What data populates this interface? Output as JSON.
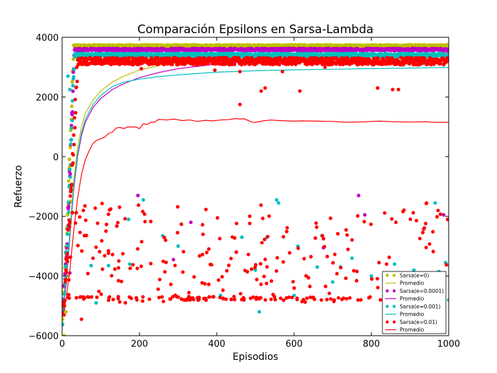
{
  "chart_data": {
    "type": "scatter",
    "title": "Comparación Epsilons en Sarsa-Lambda",
    "xlabel": "Episodios",
    "ylabel": "Refuerzo",
    "xlim": [
      0,
      1000
    ],
    "ylim": [
      -6000,
      4000
    ],
    "xticks": [
      0,
      200,
      400,
      600,
      800,
      1000
    ],
    "yticks": [
      -6000,
      -4000,
      -2000,
      0,
      2000,
      4000
    ],
    "xtick_labels": [
      "0",
      "200",
      "400",
      "600",
      "800",
      "1000"
    ],
    "ytick_labels": [
      "−6000",
      "−4000",
      "−2000",
      "0",
      "2000",
      "4000"
    ],
    "grid": false,
    "legend_position": "lower-right",
    "series": [
      {
        "name": "Sarsa(e=0)",
        "kind": "scatter",
        "color": "#bfbf00",
        "plateau": 3720,
        "plateau_noise": 30,
        "rise_end": 30,
        "outliers": [
          [
            5,
            -6000
          ],
          [
            10,
            -5200
          ],
          [
            15,
            -4000
          ],
          [
            22,
            -1500
          ]
        ]
      },
      {
        "name": "Promedio",
        "kind": "line",
        "color": "#bfbf00",
        "points": [
          [
            0,
            -5300
          ],
          [
            10,
            -4200
          ],
          [
            20,
            -2500
          ],
          [
            30,
            -800
          ],
          [
            40,
            300
          ],
          [
            50,
            1000
          ],
          [
            60,
            1450
          ],
          [
            80,
            1900
          ],
          [
            100,
            2200
          ],
          [
            130,
            2500
          ],
          [
            160,
            2700
          ],
          [
            200,
            2900
          ],
          [
            250,
            3050
          ],
          [
            300,
            3150
          ],
          [
            400,
            3300
          ],
          [
            500,
            3400
          ],
          [
            600,
            3470
          ],
          [
            700,
            3530
          ],
          [
            800,
            3580
          ],
          [
            900,
            3620
          ],
          [
            1000,
            3650
          ]
        ]
      },
      {
        "name": "Sarsa(e=0.0001)",
        "kind": "scatter",
        "color": "#bf00bf",
        "plateau": 3590,
        "plateau_noise": 40,
        "rise_end": 32,
        "outliers": [
          [
            20,
            -3900
          ],
          [
            196,
            -1300
          ],
          [
            333,
            -2200
          ],
          [
            288,
            -3450
          ],
          [
            676,
            -3050
          ],
          [
            767,
            -1300
          ],
          [
            783,
            -1950
          ],
          [
            987,
            -1950
          ]
        ]
      },
      {
        "name": "Promedio",
        "kind": "line",
        "color": "#bf00bf",
        "points": [
          [
            0,
            -5300
          ],
          [
            10,
            -4300
          ],
          [
            20,
            -2700
          ],
          [
            30,
            -1100
          ],
          [
            40,
            0
          ],
          [
            50,
            700
          ],
          [
            60,
            1150
          ],
          [
            80,
            1650
          ],
          [
            100,
            1950
          ],
          [
            130,
            2250
          ],
          [
            160,
            2450
          ],
          [
            200,
            2650
          ],
          [
            250,
            2820
          ],
          [
            300,
            2950
          ],
          [
            400,
            3100
          ],
          [
            500,
            3200
          ],
          [
            600,
            3300
          ],
          [
            700,
            3350
          ],
          [
            800,
            3400
          ],
          [
            900,
            3440
          ],
          [
            1000,
            3480
          ]
        ]
      },
      {
        "name": "Sarsa(e=0.001)",
        "kind": "scatter",
        "color": "#00bfbf",
        "plateau": 3400,
        "plateau_noise": 60,
        "rise_end": 32,
        "outliers": [
          [
            15,
            2700
          ],
          [
            20,
            2250
          ],
          [
            75,
            -3650
          ],
          [
            88,
            -4900
          ],
          [
            120,
            -3650
          ],
          [
            172,
            -2100
          ],
          [
            175,
            -3600
          ],
          [
            210,
            -1450
          ],
          [
            260,
            -2650
          ],
          [
            300,
            -3000
          ],
          [
            410,
            -4650
          ],
          [
            450,
            -3200
          ],
          [
            465,
            -2700
          ],
          [
            500,
            -3800
          ],
          [
            510,
            -5200
          ],
          [
            530,
            -2700
          ],
          [
            555,
            -1450
          ],
          [
            560,
            -1550
          ],
          [
            600,
            -4650
          ],
          [
            610,
            -3000
          ],
          [
            660,
            -3700
          ],
          [
            672,
            -2650
          ],
          [
            700,
            -4200
          ],
          [
            720,
            -3700
          ],
          [
            750,
            -3400
          ],
          [
            800,
            -4000
          ],
          [
            860,
            -3600
          ],
          [
            910,
            -3800
          ],
          [
            965,
            -1550
          ],
          [
            975,
            -3850
          ],
          [
            992,
            -3550
          ],
          [
            1000,
            -4800
          ]
        ]
      },
      {
        "name": "Promedio",
        "kind": "line",
        "color": "#00bfbf",
        "points": [
          [
            0,
            -5300
          ],
          [
            10,
            -4100
          ],
          [
            20,
            -2600
          ],
          [
            30,
            -1000
          ],
          [
            40,
            100
          ],
          [
            50,
            800
          ],
          [
            60,
            1250
          ],
          [
            80,
            1750
          ],
          [
            100,
            2050
          ],
          [
            130,
            2350
          ],
          [
            160,
            2500
          ],
          [
            200,
            2600
          ],
          [
            250,
            2680
          ],
          [
            300,
            2740
          ],
          [
            400,
            2830
          ],
          [
            500,
            2880
          ],
          [
            600,
            2910
          ],
          [
            700,
            2930
          ],
          [
            800,
            2950
          ],
          [
            900,
            2970
          ],
          [
            1000,
            2990
          ]
        ]
      },
      {
        "name": "Sarsa(e=0.01)",
        "kind": "scatter",
        "color": "#ff0000",
        "plateau": 3200,
        "plateau_noise": 120,
        "rise_end": 40,
        "outlier_count": 330,
        "outlier_seed": 7,
        "outlier_range": [
          -4950,
          -1550
        ],
        "outliers": [
          [
            5,
            -5300
          ],
          [
            50,
            -5450
          ],
          [
            460,
            1750
          ],
          [
            515,
            2200
          ],
          [
            525,
            2300
          ],
          [
            615,
            2200
          ],
          [
            816,
            2300
          ],
          [
            855,
            2250
          ],
          [
            870,
            2250
          ],
          [
            205,
            2950
          ],
          [
            460,
            2850
          ],
          [
            570,
            2850
          ],
          [
            395,
            2900
          ],
          [
            680,
            3000
          ]
        ]
      },
      {
        "name": "Promedio",
        "kind": "line",
        "color": "#ff0000",
        "points": [
          [
            0,
            -5400
          ],
          [
            10,
            -4800
          ],
          [
            20,
            -3800
          ],
          [
            30,
            -2500
          ],
          [
            40,
            -1400
          ],
          [
            50,
            -600
          ],
          [
            60,
            -100
          ],
          [
            70,
            200
          ],
          [
            80,
            450
          ],
          [
            90,
            550
          ],
          [
            100,
            600
          ],
          [
            110,
            650
          ],
          [
            120,
            780
          ],
          [
            130,
            820
          ],
          [
            140,
            960
          ],
          [
            150,
            980
          ],
          [
            160,
            940
          ],
          [
            170,
            1000
          ],
          [
            180,
            990
          ],
          [
            190,
            1000
          ],
          [
            200,
            940
          ],
          [
            210,
            1100
          ],
          [
            220,
            1080
          ],
          [
            230,
            1150
          ],
          [
            240,
            1160
          ],
          [
            250,
            1250
          ],
          [
            270,
            1230
          ],
          [
            290,
            1260
          ],
          [
            310,
            1210
          ],
          [
            330,
            1230
          ],
          [
            350,
            1180
          ],
          [
            370,
            1220
          ],
          [
            390,
            1200
          ],
          [
            410,
            1230
          ],
          [
            430,
            1240
          ],
          [
            450,
            1280
          ],
          [
            460,
            1260
          ],
          [
            470,
            1270
          ],
          [
            480,
            1220
          ],
          [
            490,
            1160
          ],
          [
            500,
            1150
          ],
          [
            520,
            1200
          ],
          [
            540,
            1230
          ],
          [
            560,
            1210
          ],
          [
            580,
            1200
          ],
          [
            600,
            1190
          ],
          [
            620,
            1200
          ],
          [
            660,
            1190
          ],
          [
            700,
            1180
          ],
          [
            740,
            1150
          ],
          [
            780,
            1170
          ],
          [
            820,
            1190
          ],
          [
            860,
            1170
          ],
          [
            900,
            1160
          ],
          [
            940,
            1170
          ],
          [
            970,
            1150
          ],
          [
            1000,
            1150
          ]
        ]
      }
    ]
  }
}
